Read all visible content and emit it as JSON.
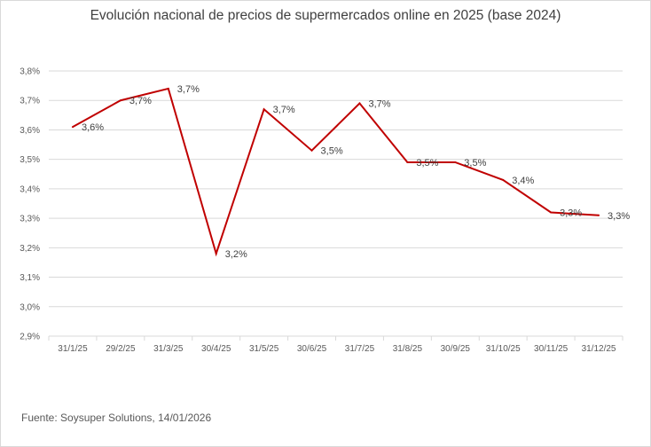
{
  "chart_data": {
    "type": "line",
    "title": "Evolución nacional de precios de supermercados online en 2025  (base 2024)",
    "xlabel": "",
    "ylabel": "",
    "categories": [
      "31/1/25",
      "29/2/25",
      "31/3/25",
      "30/4/25",
      "31/5/25",
      "30/6/25",
      "31/7/25",
      "31/8/25",
      "30/9/25",
      "31/10/25",
      "30/11/25",
      "31/12/25"
    ],
    "series": [
      {
        "values": [
          3.61,
          3.7,
          3.74,
          3.18,
          3.67,
          3.53,
          3.69,
          3.49,
          3.49,
          3.43,
          3.32,
          3.31
        ],
        "data_labels": [
          "3,6%",
          "3,7%",
          "3,7%",
          "3,2%",
          "3,7%",
          "3,5%",
          "3,7%",
          "3,5%",
          "3,5%",
          "3,4%",
          "3,3%",
          "3,3%"
        ],
        "color": "#c00000"
      }
    ],
    "ylim": [
      2.9,
      3.8
    ],
    "yticks": [
      "2,9%",
      "3,0%",
      "3,1%",
      "3,2%",
      "3,3%",
      "3,4%",
      "3,5%",
      "3,6%",
      "3,7%",
      "3,8%"
    ],
    "grid": true,
    "legend": "none",
    "source": "Fuente: Soysuper Solutions, 14/01/2026"
  }
}
